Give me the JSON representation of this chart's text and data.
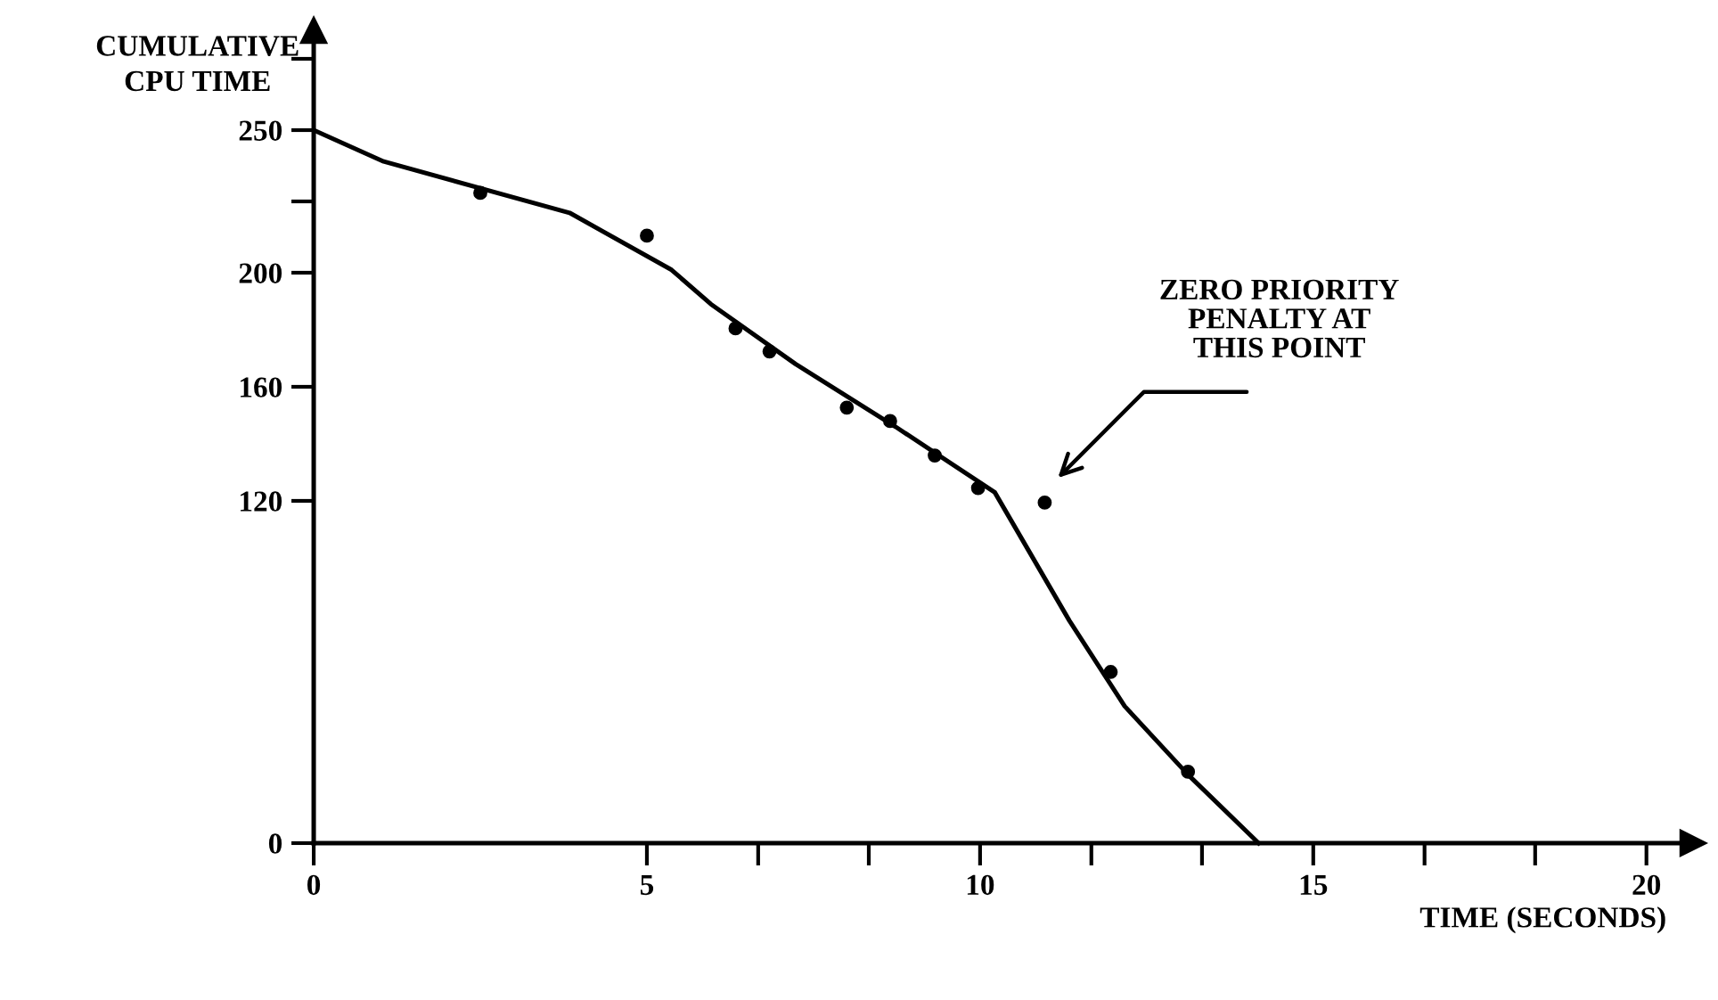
{
  "chart_data": {
    "type": "scatter",
    "xlabel": "TIME (SECONDS)",
    "ylabel": "CUMULATIVE\nCPU TIME",
    "series": [
      {
        "color": "#000000",
        "marker": "circle",
        "x": [
          2.5,
          5.0,
          6.33,
          6.84,
          8.0,
          8.65,
          9.32,
          9.97,
          10.97,
          11.96,
          13.12
        ],
        "values": [
          228,
          213,
          180.5,
          172.4,
          152.7,
          148.0,
          135.9,
          124.5,
          119.4,
          60,
          25
        ]
      },
      {
        "type": "line",
        "color": "#000000",
        "marker": "none",
        "line_style": "solid",
        "x": [
          0,
          1.05,
          3.84,
          5.37,
          5.96,
          7.23,
          8.73,
          10.22,
          11.34,
          12.17,
          13.12,
          14.18
        ],
        "values": [
          250,
          239,
          221,
          201,
          189,
          168,
          146,
          123,
          78,
          48,
          24,
          0
        ]
      }
    ],
    "xlim": [
      0,
      20.7
    ],
    "ylim": [
      0,
      285
    ],
    "xticks": [
      0,
      5,
      {
        "value": 6.67,
        "label": null
      },
      {
        "value": 8.33,
        "label": null
      },
      10,
      {
        "value": 11.67,
        "label": null
      },
      {
        "value": 13.33,
        "label": null
      },
      15,
      {
        "value": 16.67,
        "label": null
      },
      {
        "value": 18.33,
        "label": null
      },
      20
    ],
    "yticks": [
      0,
      120,
      160,
      200,
      {
        "value": 225,
        "label": null
      },
      250,
      {
        "value": 275,
        "label": null
      }
    ],
    "annotations": [
      "ZERO PRIORITY\nPENALTY AT\nTHIS POINT"
    ],
    "grid": false,
    "legend": false
  }
}
